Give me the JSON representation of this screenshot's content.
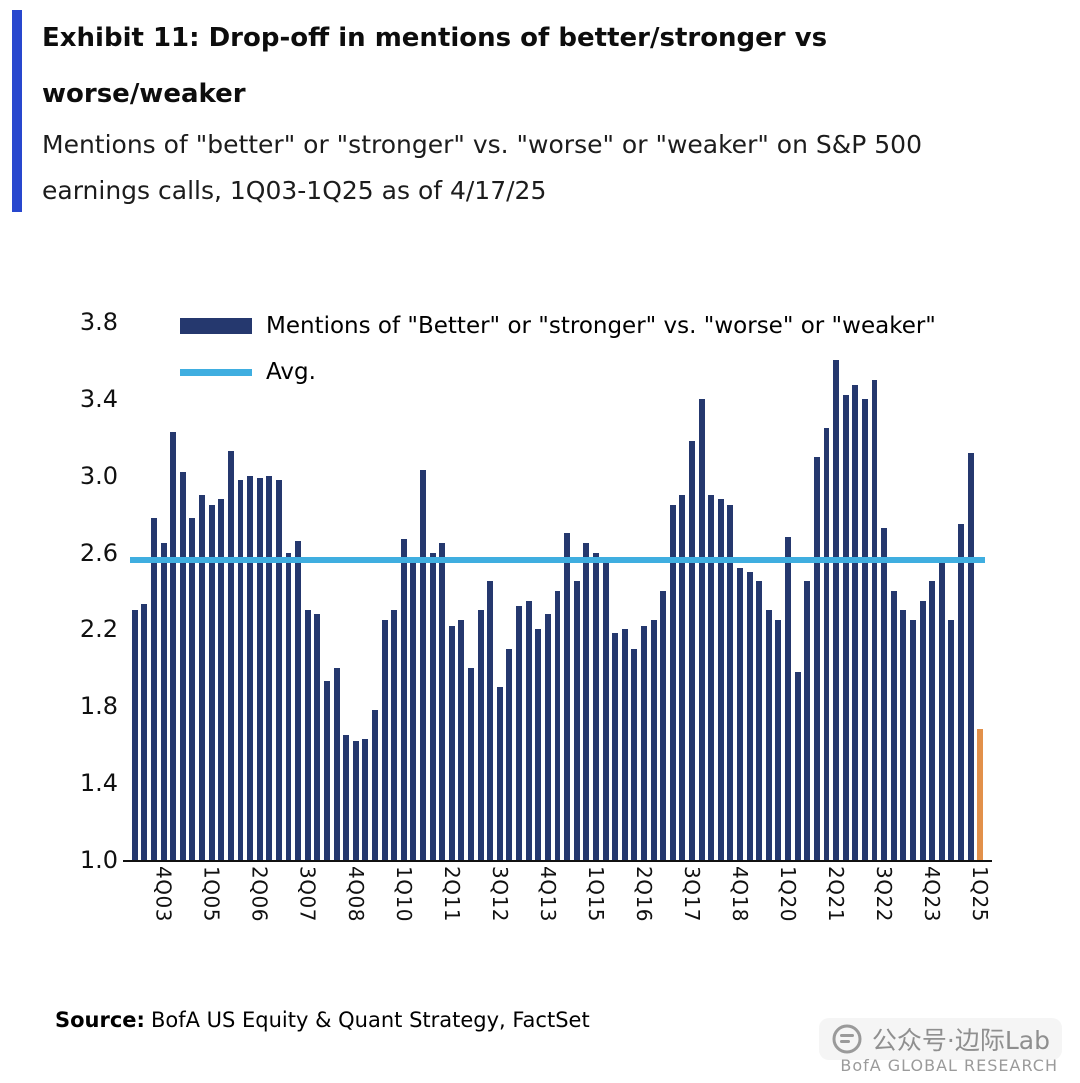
{
  "header": {
    "title_line1": "Exhibit 11: Drop-off in mentions of better/stronger vs",
    "title_line2": "worse/weaker",
    "subtitle_line1": "Mentions of \"better\" or \"stronger\" vs. \"worse\" or \"weaker\" on S&P 500",
    "subtitle_line2": "earnings calls, 1Q03-1Q25 as of 4/17/25"
  },
  "colors": {
    "accent": "#2847CE",
    "bar": "#25386E",
    "highlight": "#E2904A",
    "avg_line": "#3FAEE0",
    "axis": "#111111"
  },
  "chart_data": {
    "type": "bar",
    "title": "",
    "xlabel": "",
    "ylabel": "",
    "ylim": [
      1.0,
      3.8
    ],
    "yticks": [
      1.0,
      1.4,
      1.8,
      2.2,
      2.6,
      3.0,
      3.4,
      3.8
    ],
    "grid": false,
    "legend_position": "top-left",
    "avg_value": 2.56,
    "xtick_start_index": 3,
    "xtick_every": 5,
    "xtick_labels_shown": [
      "4Q03",
      "1Q05",
      "2Q06",
      "3Q07",
      "4Q08",
      "1Q10",
      "2Q11",
      "3Q12",
      "4Q13",
      "1Q15",
      "2Q16",
      "3Q17",
      "4Q18",
      "1Q20",
      "2Q21",
      "3Q22",
      "4Q23",
      "1Q25"
    ],
    "categories": [
      "1Q03",
      "2Q03",
      "3Q03",
      "4Q03",
      "1Q04",
      "2Q04",
      "3Q04",
      "4Q04",
      "1Q05",
      "2Q05",
      "3Q05",
      "4Q05",
      "1Q06",
      "2Q06",
      "3Q06",
      "4Q06",
      "1Q07",
      "2Q07",
      "3Q07",
      "4Q07",
      "1Q08",
      "2Q08",
      "3Q08",
      "4Q08",
      "1Q09",
      "2Q09",
      "3Q09",
      "4Q09",
      "1Q10",
      "2Q10",
      "3Q10",
      "4Q10",
      "1Q11",
      "2Q11",
      "3Q11",
      "4Q11",
      "1Q12",
      "2Q12",
      "3Q12",
      "4Q12",
      "1Q13",
      "2Q13",
      "3Q13",
      "4Q13",
      "1Q14",
      "2Q14",
      "3Q14",
      "4Q14",
      "1Q15",
      "2Q15",
      "3Q15",
      "4Q15",
      "1Q16",
      "2Q16",
      "3Q16",
      "4Q16",
      "1Q17",
      "2Q17",
      "3Q17",
      "4Q17",
      "1Q18",
      "2Q18",
      "3Q18",
      "4Q18",
      "1Q19",
      "2Q19",
      "3Q19",
      "4Q19",
      "1Q20",
      "2Q20",
      "3Q20",
      "4Q20",
      "1Q21",
      "2Q21",
      "3Q21",
      "4Q21",
      "1Q22",
      "2Q22",
      "3Q22",
      "4Q22",
      "1Q23",
      "2Q23",
      "3Q23",
      "4Q23",
      "1Q24",
      "2Q24",
      "3Q24",
      "4Q24",
      "1Q25"
    ],
    "values": [
      2.3,
      2.33,
      2.78,
      2.65,
      3.23,
      3.02,
      2.78,
      2.9,
      2.85,
      2.88,
      3.13,
      2.98,
      3.0,
      2.99,
      3.0,
      2.98,
      2.6,
      2.66,
      2.3,
      2.28,
      1.93,
      2.0,
      1.65,
      1.62,
      1.63,
      1.78,
      2.25,
      2.3,
      2.67,
      2.55,
      3.03,
      2.6,
      2.65,
      2.22,
      2.25,
      2.0,
      2.3,
      2.45,
      1.9,
      2.1,
      2.32,
      2.35,
      2.2,
      2.28,
      2.4,
      2.7,
      2.45,
      2.65,
      2.6,
      2.55,
      2.18,
      2.2,
      2.1,
      2.22,
      2.25,
      2.4,
      2.85,
      2.9,
      3.18,
      3.4,
      2.9,
      2.88,
      2.85,
      2.52,
      2.5,
      2.45,
      2.3,
      2.25,
      2.68,
      1.98,
      2.45,
      3.1,
      3.25,
      3.6,
      3.42,
      3.47,
      3.4,
      3.5,
      2.73,
      2.4,
      2.3,
      2.25,
      2.35,
      2.45,
      2.55,
      2.25,
      2.75,
      3.12,
      1.68
    ],
    "highlight_last_bar": true,
    "legend": [
      {
        "type": "bar",
        "label": "Mentions of \"Better\" or \"stronger\" vs. \"worse\" or \"weaker\""
      },
      {
        "type": "line",
        "label": "Avg."
      }
    ]
  },
  "source": {
    "label": "Source:",
    "text": "BofA US Equity & Quant Strategy, FactSet"
  },
  "footer": {
    "watermark": "公众号·边际Lab",
    "brand": "BofA GLOBAL RESEARCH"
  }
}
